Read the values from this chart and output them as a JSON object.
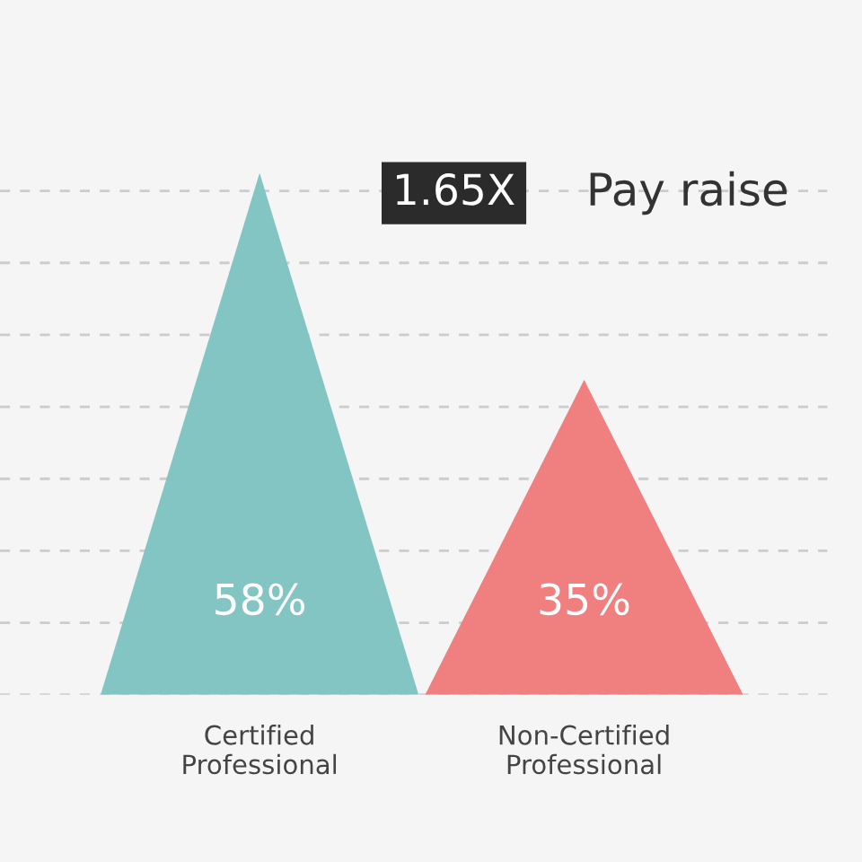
{
  "chart_data": {
    "type": "bar",
    "categories": [
      "Certified\nProfessional",
      "Non-Certified\nProfessional"
    ],
    "values": [
      58,
      35
    ],
    "colors": [
      "#83c5c2",
      "#f08080"
    ],
    "value_labels": [
      "58%",
      "35%"
    ],
    "yticks": [
      {
        "value": 0,
        "label": null
      },
      {
        "value": 8,
        "label": null
      },
      {
        "value": 16,
        "label": null
      },
      {
        "value": 24,
        "label": null
      },
      {
        "value": 32,
        "label": null
      },
      {
        "value": 40,
        "label": null
      },
      {
        "value": 48,
        "label": null
      },
      {
        "value": 56,
        "label": null
      }
    ],
    "grid": "y",
    "tick_labels": "x",
    "annotations": [
      "1.65X",
      "Pay raise"
    ]
  }
}
